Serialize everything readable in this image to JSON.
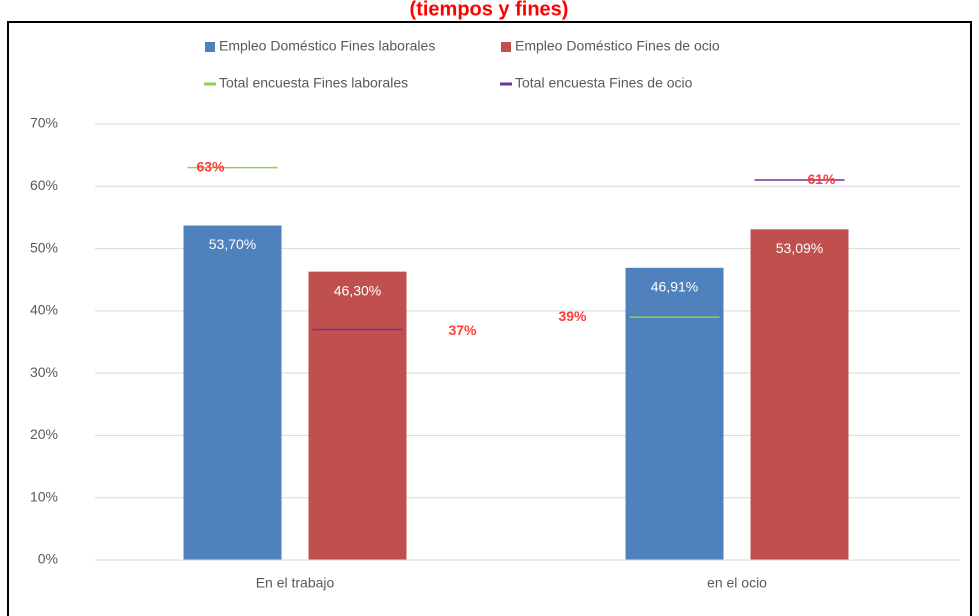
{
  "chart_data": {
    "type": "bar",
    "title": "(tiempos y fines)",
    "categories": [
      "En el trabajo",
      "en el ocio"
    ],
    "series": [
      {
        "name": "Empleo Doméstico Fines laborales",
        "color": "#4f81bd",
        "kind": "bar",
        "values": [
          53.7,
          46.91
        ],
        "value_labels": [
          "53,70%",
          "46,91%"
        ]
      },
      {
        "name": "Empleo Doméstico Fines de ocio",
        "color": "#c0504d",
        "kind": "bar",
        "values": [
          46.3,
          53.09
        ],
        "value_labels": [
          "46,30%",
          "53,09%"
        ]
      },
      {
        "name": "Total encuesta Fines laborales",
        "color": "#92d050",
        "kind": "dash",
        "values": [
          63,
          39
        ],
        "value_labels": [
          "63%",
          "39%"
        ]
      },
      {
        "name": "Total encuesta Fines de ocio",
        "color": "#7030a0",
        "kind": "dash",
        "values": [
          37,
          61
        ],
        "value_labels": [
          "37%",
          "61%"
        ]
      }
    ],
    "ylim": [
      0,
      70
    ],
    "yticks": [
      {
        "value": 0,
        "label": "0%"
      },
      {
        "value": 10,
        "label": "10%"
      },
      {
        "value": 20,
        "label": "20%"
      },
      {
        "value": 30,
        "label": "30%"
      },
      {
        "value": 40,
        "label": "40%"
      },
      {
        "value": 50,
        "label": "50%"
      },
      {
        "value": 60,
        "label": "60%"
      },
      {
        "value": 70,
        "label": "70%"
      }
    ],
    "grid": true
  }
}
